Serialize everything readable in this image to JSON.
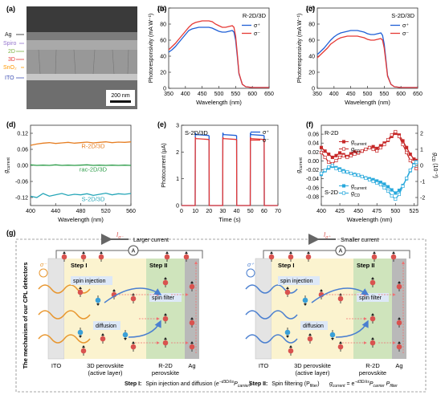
{
  "panels": {
    "a": {
      "letter": "(a)",
      "layers": [
        "Ag",
        "Spiro",
        "2D",
        "3D",
        "SnO₂",
        "ITO"
      ],
      "layer_colors": [
        "#222222",
        "#b39ddb",
        "#9ccc65",
        "#ef5350",
        "#ffb300",
        "#5c6bc0"
      ],
      "scalebar": "200 nm"
    },
    "g": {
      "letter": "(g)",
      "side_title": "The mechanism of our CPL detectors",
      "left": {
        "current_symbol": "I",
        "current_sub": "σ⁻",
        "current_text": "Larger current",
        "meter": "A",
        "step1": "Step I",
        "step2": "Step II",
        "light": "σ⁻",
        "spin_injection": "spin injection",
        "spin_filter": "spin filter",
        "diffusion": "diffusion",
        "label_ito": "ITO",
        "label_3d_1": "3D perovskite",
        "label_3d_2": "(active layer)",
        "label_r2d_1": "R-2D",
        "label_r2d_2": "perovskite",
        "label_ag": "Ag"
      },
      "right": {
        "current_symbol": "I",
        "current_sub": "σ⁺",
        "current_text": "Smaller current",
        "meter": "A",
        "step1": "Step I",
        "step2": "Step II",
        "light": "σ⁺",
        "spin_injection": "spin injection",
        "spin_filter": "spin filter",
        "diffusion": "diffusion",
        "label_ito": "ITO",
        "label_3d_1": "3D perovskite",
        "label_3d_2": "(active layer)",
        "label_r2d_1": "R-2D",
        "label_r2d_2": "perovskite",
        "label_ag": "Ag"
      },
      "caption_step1_bold": "Step I:",
      "caption_step1_text": "Spin injection and diffusion (",
      "caption_step1_formula": "e⁻ᵈ³ᴰ/λₛ Pₕₐᵣᵣᵢₑᵣ",
      "caption_step1_end": ")",
      "caption_step2_bold": "Step II:",
      "caption_step2_text": "Spin filtering (P",
      "caption_step2_sub": "filter",
      "caption_step2_end": ")",
      "caption_formula": "g",
      "caption_formula_sub": "current",
      "caption_formula_eq": "= e",
      "caption_formula_exp": "−d3D/λs",
      "caption_formula_rest1": "P",
      "caption_formula_rest1_sub": "carrier",
      "caption_formula_rest2": " P",
      "caption_formula_rest2_sub": "filter"
    }
  },
  "chart_data": [
    {
      "panel": "(b)",
      "type": "line",
      "annotation": "R-2D/3D",
      "xlabel": "Wavelength (nm)",
      "ylabel": "Photoresponsivity (mA W⁻¹)",
      "xlim": [
        350,
        650
      ],
      "ylim": [
        0,
        100
      ],
      "xticks": [
        350,
        400,
        450,
        500,
        550,
        600,
        650
      ],
      "yticks": [
        0,
        20,
        40,
        60,
        80,
        100
      ],
      "x": [
        350,
        360,
        370,
        380,
        390,
        400,
        410,
        420,
        430,
        440,
        450,
        460,
        470,
        480,
        490,
        500,
        510,
        520,
        530,
        540,
        545,
        550,
        555,
        560,
        570,
        580,
        600,
        620,
        650
      ],
      "series": [
        {
          "name": "σ⁺",
          "color": "#1f5fd6",
          "values": [
            45,
            48,
            52,
            57,
            62,
            67,
            72,
            74,
            75,
            76,
            76,
            76,
            76,
            75,
            73,
            71,
            70,
            70,
            71,
            72,
            70,
            60,
            40,
            18,
            5,
            2,
            1,
            1,
            1
          ]
        },
        {
          "name": "σ⁻",
          "color": "#e53935",
          "values": [
            48,
            52,
            56,
            61,
            66,
            71,
            76,
            80,
            82,
            83,
            84,
            84,
            84,
            83,
            80,
            78,
            76,
            76,
            77,
            78,
            76,
            65,
            43,
            19,
            5,
            2,
            1,
            1,
            1
          ]
        }
      ]
    },
    {
      "panel": "(c)",
      "type": "line",
      "annotation": "S-2D/3D",
      "xlabel": "Wavelength (nm)",
      "ylabel": "Photoresponsivity (mA W⁻¹)",
      "xlim": [
        350,
        650
      ],
      "ylim": [
        0,
        100
      ],
      "xticks": [
        350,
        400,
        450,
        500,
        550,
        600,
        650
      ],
      "yticks": [
        0,
        20,
        40,
        60,
        80,
        100
      ],
      "x": [
        350,
        360,
        370,
        380,
        390,
        400,
        410,
        420,
        430,
        440,
        450,
        460,
        470,
        480,
        490,
        500,
        510,
        520,
        530,
        540,
        545,
        550,
        555,
        560,
        570,
        580,
        600,
        620,
        650
      ],
      "series": [
        {
          "name": "σ⁺",
          "color": "#1f5fd6",
          "values": [
            42,
            46,
            50,
            55,
            60,
            64,
            67,
            69,
            70,
            71,
            72,
            72,
            72,
            71,
            70,
            68,
            67,
            67,
            68,
            69,
            66,
            55,
            36,
            16,
            5,
            2,
            1,
            1,
            1
          ]
        },
        {
          "name": "σ⁻",
          "color": "#e53935",
          "values": [
            38,
            42,
            46,
            50,
            55,
            58,
            61,
            63,
            64,
            65,
            65,
            65,
            65,
            64,
            63,
            61,
            60,
            60,
            61,
            62,
            60,
            50,
            33,
            15,
            5,
            2,
            1,
            1,
            1
          ]
        }
      ]
    },
    {
      "panel": "(d)",
      "type": "line",
      "xlabel": "Wavelength (nm)",
      "ylabel": "g",
      "ylabel_sub": "current",
      "xlim": [
        400,
        560
      ],
      "ylim": [
        -0.15,
        0.15
      ],
      "xticks": [
        400,
        440,
        480,
        520,
        560
      ],
      "yticks": [
        -0.12,
        -0.06,
        0.0,
        0.06,
        0.12
      ],
      "ytick_labels": [
        "-0.12",
        "-0.06",
        "0.00",
        "0.06",
        "0.12"
      ],
      "series": [
        {
          "name": "R-2D/3D",
          "color": "#e67e22",
          "x": [
            400,
            410,
            420,
            430,
            440,
            450,
            460,
            470,
            480,
            490,
            500,
            510,
            520,
            530,
            540,
            550,
            560
          ],
          "values": [
            0.075,
            0.08,
            0.083,
            0.085,
            0.082,
            0.084,
            0.086,
            0.083,
            0.085,
            0.087,
            0.084,
            0.086,
            0.088,
            0.085,
            0.087,
            0.086,
            0.088
          ]
        },
        {
          "name": "rac-2D/3D",
          "color": "#2e9d4a",
          "x": [
            400,
            410,
            420,
            430,
            440,
            450,
            460,
            470,
            480,
            490,
            500,
            510,
            520,
            530,
            540,
            550,
            560
          ],
          "values": [
            0.002,
            0.0,
            0.001,
            0.0,
            0.002,
            0.0,
            0.001,
            0.0,
            0.001,
            0.002,
            0.0,
            0.001,
            0.0,
            0.001,
            0.0,
            0.001,
            0.0
          ]
        },
        {
          "name": "S-2D/3D",
          "color": "#26a6b8",
          "x": [
            400,
            410,
            420,
            430,
            440,
            450,
            460,
            470,
            480,
            490,
            500,
            510,
            520,
            530,
            540,
            550,
            560
          ],
          "values": [
            -0.115,
            -0.12,
            -0.105,
            -0.115,
            -0.11,
            -0.105,
            -0.112,
            -0.108,
            -0.11,
            -0.106,
            -0.112,
            -0.108,
            -0.104,
            -0.11,
            -0.106,
            -0.108,
            -0.105
          ]
        }
      ]
    },
    {
      "panel": "(e)",
      "type": "line",
      "annotation": "S-2D/3D",
      "xlabel": "Time (s)",
      "ylabel": "Photocurrent (μA)",
      "xlim": [
        0,
        70
      ],
      "ylim": [
        0,
        3
      ],
      "xticks": [
        0,
        10,
        20,
        30,
        40,
        50,
        60,
        70
      ],
      "yticks": [
        0,
        1,
        2,
        3
      ],
      "series": [
        {
          "name": "σ⁺",
          "color": "#1f5fd6",
          "x": [
            0,
            9.9,
            10,
            10.5,
            19.5,
            20,
            20.1,
            29.9,
            30,
            30.5,
            39.5,
            40,
            40.1,
            49.9,
            50,
            50.5,
            59.5,
            60,
            60.1,
            70
          ],
          "values": [
            0,
            0,
            2.72,
            2.65,
            2.62,
            2.6,
            0,
            0,
            2.72,
            2.65,
            2.62,
            2.6,
            0,
            0,
            2.72,
            2.65,
            2.62,
            2.6,
            0,
            0
          ]
        },
        {
          "name": "σ⁻",
          "color": "#e53935",
          "x": [
            0,
            9.9,
            10,
            10.5,
            19.5,
            20,
            20.1,
            29.9,
            30,
            30.5,
            39.5,
            40,
            40.1,
            49.9,
            50,
            50.5,
            59.5,
            60,
            60.1,
            70
          ],
          "values": [
            0,
            0,
            2.55,
            2.5,
            2.47,
            2.45,
            0,
            0,
            2.55,
            2.5,
            2.47,
            2.45,
            0,
            0,
            2.55,
            2.5,
            2.47,
            2.45,
            0,
            0
          ]
        }
      ]
    },
    {
      "panel": "(f)",
      "type": "line",
      "xlabel": "Wavelength (nm)",
      "ylabel": "g",
      "ylabel_sub": "current",
      "ylabel_right": "g",
      "ylabel_right_sub": "CD",
      "ylabel_right_unit": " (10⁻³)",
      "annotation_top": "R-2D",
      "annotation_bottom": "S-2D",
      "xlim": [
        400,
        530
      ],
      "ylim": [
        -0.1,
        0.08
      ],
      "ylim_right": [
        -2.5,
        2.5
      ],
      "xticks": [
        400,
        425,
        450,
        475,
        500,
        525
      ],
      "yticks": [
        -0.08,
        -0.06,
        -0.04,
        -0.02,
        0.0,
        0.02,
        0.04,
        0.06
      ],
      "ytick_labels": [
        "-0.08",
        "-0.06",
        "-0.04",
        "-0.02",
        "0.00",
        "0.02",
        "0.04",
        "0.06"
      ],
      "yticks_right": [
        -2,
        -1,
        0,
        1,
        2
      ],
      "legend_top": [
        {
          "symbol": "g",
          "sub": "current"
        },
        {
          "symbol": "g",
          "sub": "CD"
        }
      ],
      "legend_bottom": [
        {
          "symbol": "g",
          "sub": "current"
        },
        {
          "symbol": "g",
          "sub": "CD"
        }
      ],
      "series": [
        {
          "name": "R-2D g_current",
          "color": "#c62828",
          "filled": true,
          "axis": "left",
          "x": [
            400,
            405,
            410,
            415,
            420,
            425,
            430,
            435,
            440,
            445,
            450,
            455,
            460,
            465,
            470,
            475,
            480,
            485,
            490,
            495,
            500,
            505,
            510,
            515,
            520,
            525,
            528
          ],
          "values": [
            0.03,
            0.022,
            0.015,
            0.008,
            0.012,
            0.018,
            0.014,
            0.01,
            0.016,
            0.02,
            0.018,
            0.022,
            0.026,
            0.03,
            0.032,
            0.028,
            0.034,
            0.04,
            0.046,
            0.055,
            0.062,
            0.058,
            0.045,
            0.03,
            0.015,
            0.004,
            0.001
          ]
        },
        {
          "name": "R-2D g_CD",
          "color": "#c62828",
          "filled": false,
          "axis": "right",
          "x": [
            400,
            405,
            410,
            415,
            420,
            425,
            430,
            435,
            440,
            445,
            450,
            455,
            460,
            465,
            470,
            475,
            480,
            485,
            490,
            495,
            500,
            505,
            510,
            515,
            520,
            525,
            528
          ],
          "values": [
            0.8,
            0.5,
            0.2,
            0.1,
            0.3,
            0.5,
            0.6,
            0.5,
            0.6,
            0.7,
            0.8,
            0.9,
            1.0,
            1.1,
            1.0,
            0.9,
            1.1,
            1.3,
            1.6,
            1.9,
            2.1,
            1.8,
            1.3,
            0.8,
            0.3,
            0.0,
            -0.2
          ]
        },
        {
          "name": "S-2D g_current",
          "color": "#29a9dc",
          "filled": true,
          "axis": "left",
          "x": [
            400,
            405,
            410,
            415,
            420,
            425,
            430,
            435,
            440,
            445,
            450,
            455,
            460,
            465,
            470,
            475,
            480,
            485,
            490,
            495,
            500,
            505,
            510,
            515,
            520,
            525,
            528
          ],
          "values": [
            -0.03,
            -0.022,
            -0.016,
            -0.012,
            -0.015,
            -0.018,
            -0.022,
            -0.025,
            -0.028,
            -0.03,
            -0.032,
            -0.035,
            -0.038,
            -0.04,
            -0.042,
            -0.045,
            -0.048,
            -0.052,
            -0.058,
            -0.065,
            -0.072,
            -0.066,
            -0.055,
            -0.04,
            -0.022,
            -0.008,
            -0.002
          ]
        },
        {
          "name": "S-2D g_CD",
          "color": "#29a9dc",
          "filled": false,
          "axis": "right",
          "x": [
            400,
            405,
            410,
            415,
            420,
            425,
            430,
            435,
            440,
            445,
            450,
            455,
            460,
            465,
            470,
            475,
            480,
            485,
            490,
            495,
            500,
            505,
            510,
            515,
            520,
            525,
            528
          ],
          "values": [
            -0.5,
            -0.3,
            -0.1,
            0.0,
            -0.2,
            -0.3,
            -0.4,
            -0.4,
            -0.5,
            -0.6,
            -0.6,
            -0.7,
            -0.8,
            -0.9,
            -1.0,
            -1.1,
            -1.2,
            -1.4,
            -1.6,
            -1.9,
            -2.1,
            -1.8,
            -1.3,
            -0.8,
            -0.3,
            0.0,
            0.2
          ]
        }
      ]
    }
  ]
}
